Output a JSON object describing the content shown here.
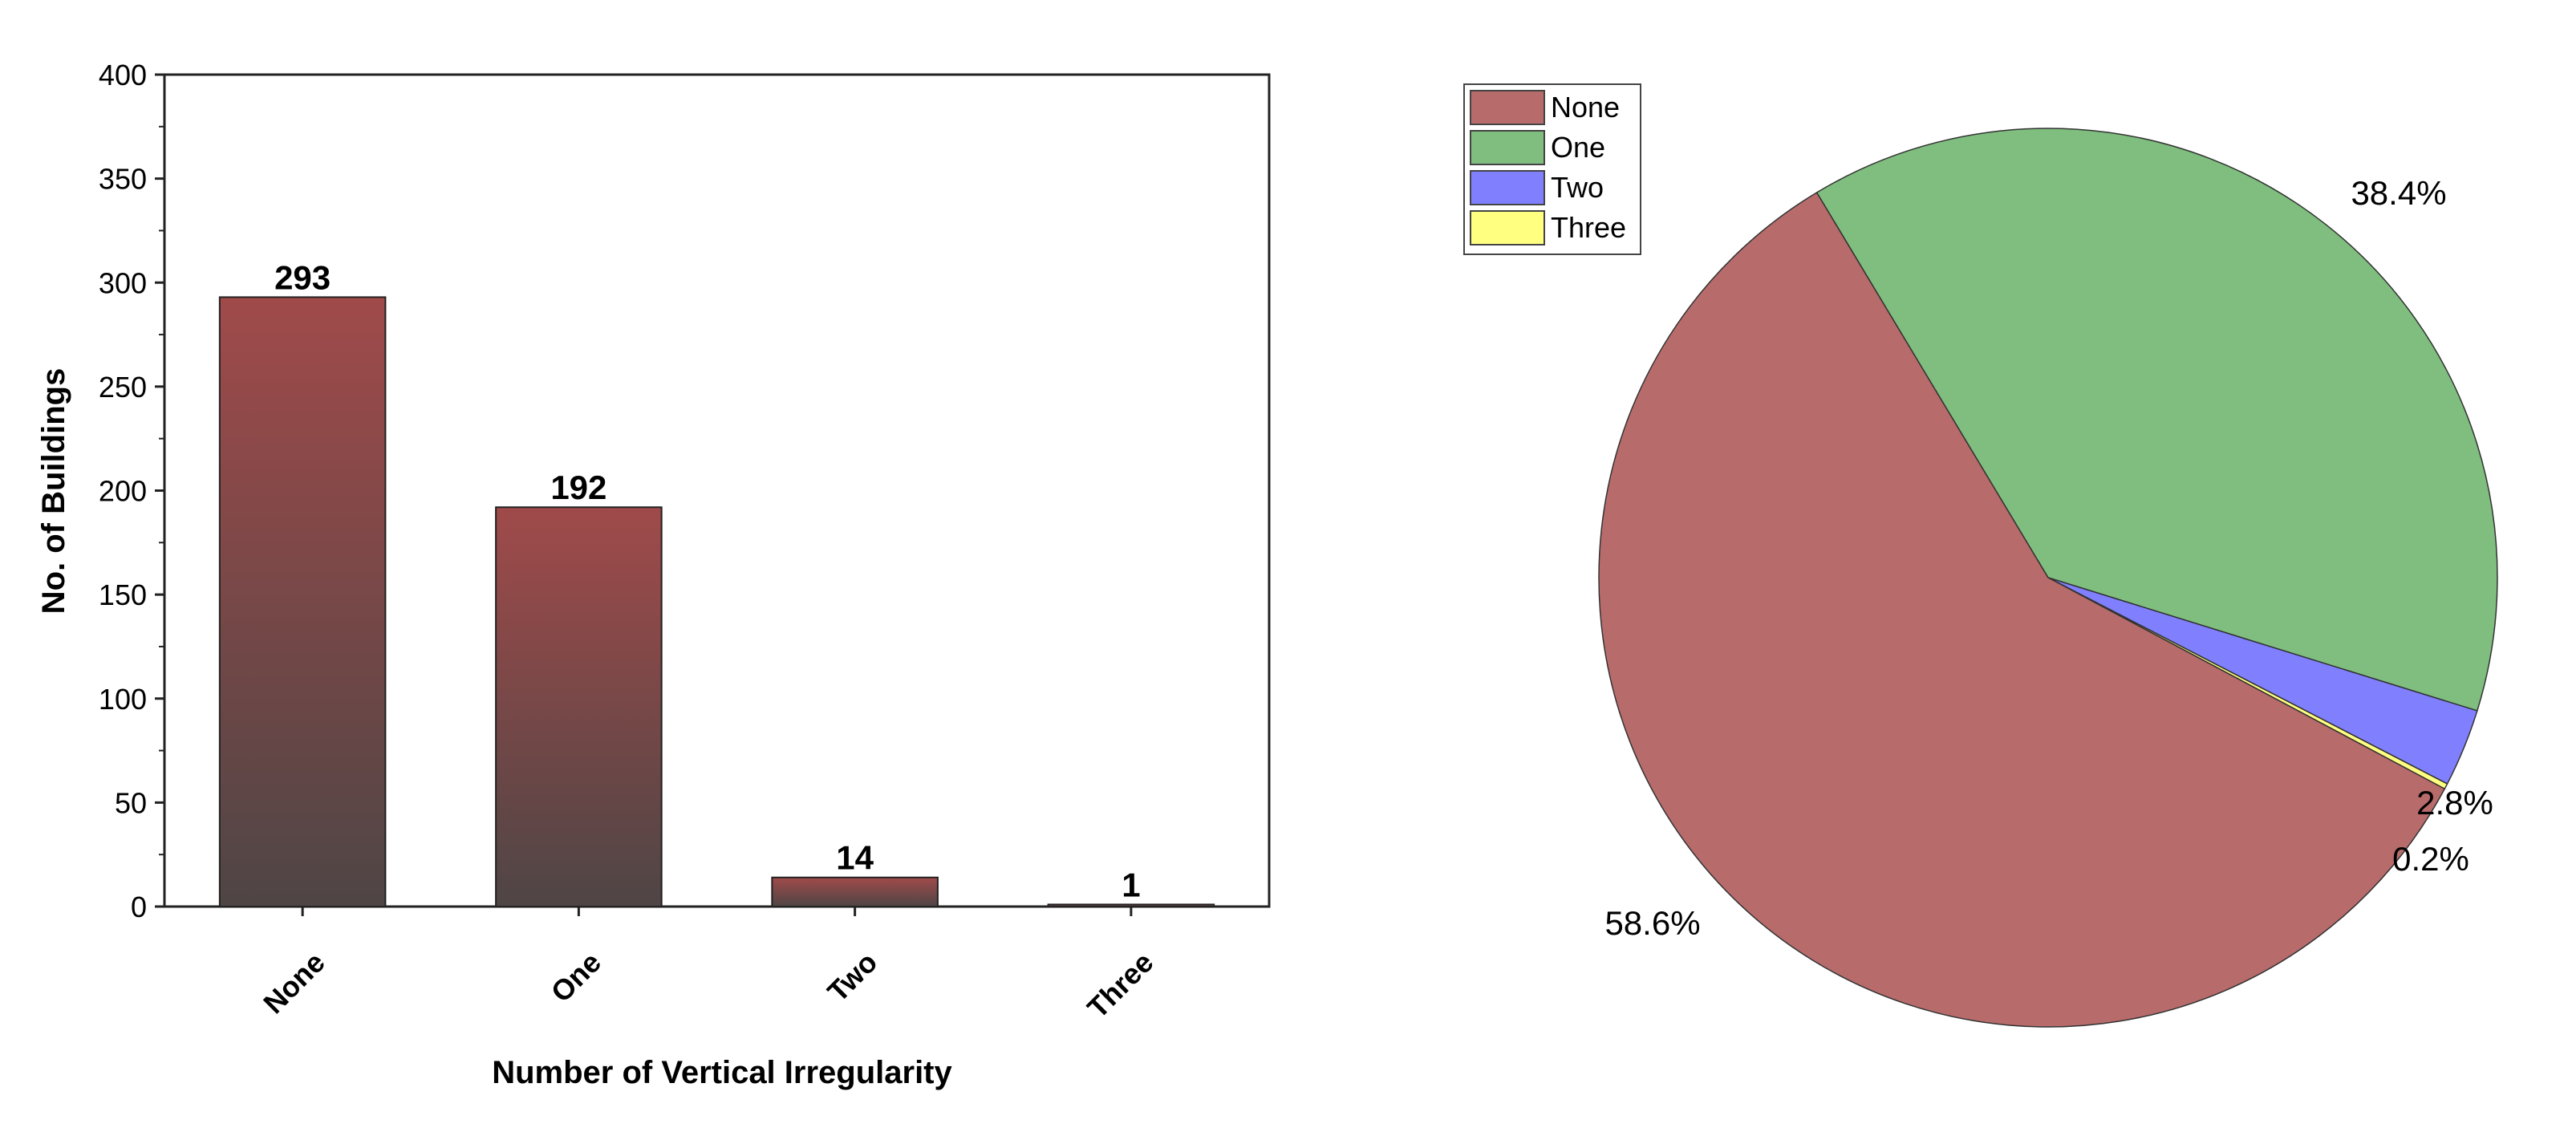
{
  "colors": {
    "bar_top": "#a04a4a",
    "bar_bottom": "#4f4545",
    "none": "#b86b6b",
    "one": "#7fbe7f",
    "two": "#8080ff",
    "three": "#ffff80"
  },
  "chart_data": [
    {
      "type": "bar",
      "categories": [
        "None",
        "One",
        "Two",
        "Three"
      ],
      "values": [
        293,
        192,
        14,
        1
      ],
      "data_labels": [
        "293",
        "192",
        "14",
        "1"
      ],
      "xlabel": "Number of Vertical Irregularity",
      "ylabel": "No. of Buildings",
      "ylim": [
        0,
        400
      ],
      "yticks": [
        0,
        50,
        100,
        150,
        200,
        250,
        300,
        350,
        400
      ],
      "ytick_labels": [
        "0",
        "50",
        "100",
        "150",
        "200",
        "250",
        "300",
        "350",
        "400"
      ],
      "grid": false
    },
    {
      "type": "pie",
      "labels": [
        "None",
        "One",
        "Two",
        "Three"
      ],
      "values": [
        58.6,
        38.4,
        2.8,
        0.2
      ],
      "value_labels": [
        "58.6%",
        "38.4%",
        "2.8%",
        "0.2%"
      ],
      "legend": [
        "None",
        "One",
        "Two",
        "Three"
      ],
      "legend_position": "top-left"
    }
  ]
}
